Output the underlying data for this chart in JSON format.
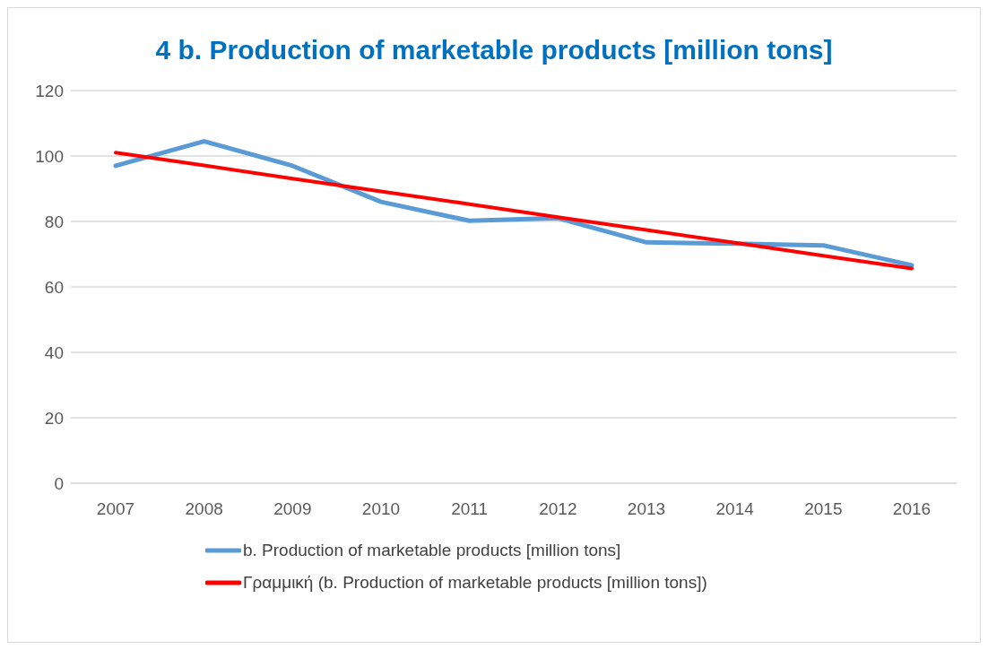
{
  "chart_data": {
    "type": "line",
    "title": "4 b. Production of marketable products [million tons]",
    "categories": [
      "2007",
      "2008",
      "2009",
      "2010",
      "2011",
      "2012",
      "2013",
      "2014",
      "2015",
      "2016"
    ],
    "series": [
      {
        "name": "b. Production of marketable products [million tons]",
        "color": "#5b9bd5",
        "values": [
          97,
          104.5,
          97,
          86,
          80.2,
          81,
          73.6,
          73.2,
          72.7,
          66.6
        ]
      },
      {
        "name": "Γραμμική (b. Production of marketable products [million tons])",
        "color": "#ff0000",
        "values": [
          101,
          97.1,
          93.1,
          89.2,
          85.3,
          81.3,
          77.4,
          73.5,
          69.5,
          65.6
        ]
      }
    ],
    "ylim": [
      0,
      120
    ],
    "yticks": [
      0,
      20,
      40,
      60,
      80,
      100,
      120
    ],
    "grid": "y",
    "legend": "bottom",
    "marker": "none",
    "line_style": "solid"
  }
}
